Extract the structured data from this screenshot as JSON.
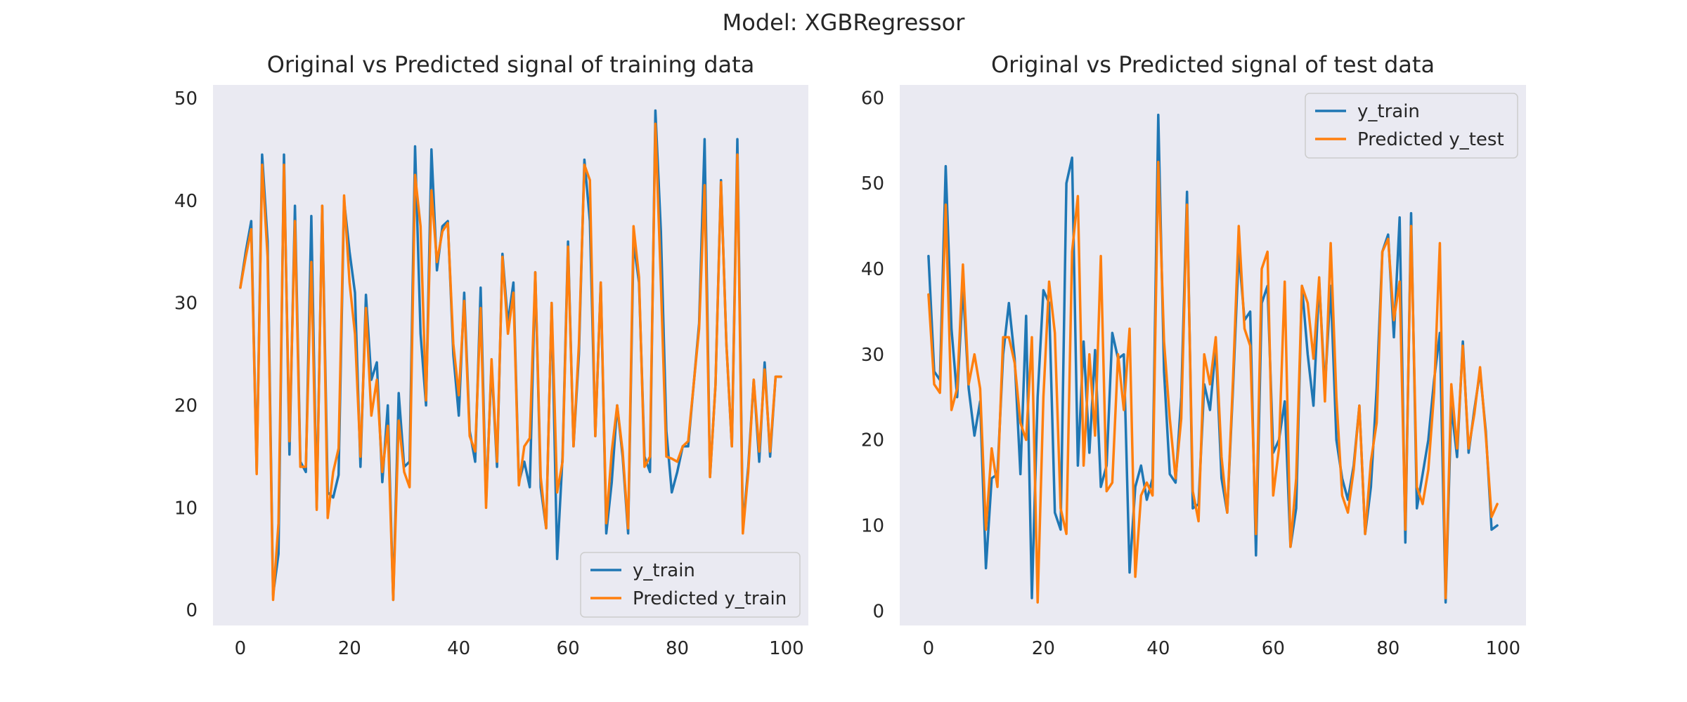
{
  "figure": {
    "suptitle": "Model: XGBRegressor",
    "background": "#ffffff",
    "axes_facecolor": "#eaeaf2"
  },
  "chart_data": [
    {
      "type": "line",
      "title": "Original vs Predicted signal of training data",
      "xlabel": "",
      "ylabel": "",
      "xlim": [
        -5,
        104
      ],
      "ylim": [
        -1.5,
        51.3
      ],
      "xticks": [
        0,
        20,
        40,
        60,
        80,
        100
      ],
      "yticks": [
        0,
        10,
        20,
        30,
        40,
        50
      ],
      "grid": false,
      "legend_position": "lower-right",
      "x": [
        0,
        1,
        2,
        3,
        4,
        5,
        6,
        7,
        8,
        9,
        10,
        11,
        12,
        13,
        14,
        15,
        16,
        17,
        18,
        19,
        20,
        21,
        22,
        23,
        24,
        25,
        26,
        27,
        28,
        29,
        30,
        31,
        32,
        33,
        34,
        35,
        36,
        37,
        38,
        39,
        40,
        41,
        42,
        43,
        44,
        45,
        46,
        47,
        48,
        49,
        50,
        51,
        52,
        53,
        54,
        55,
        56,
        57,
        58,
        59,
        60,
        61,
        62,
        63,
        64,
        65,
        66,
        67,
        68,
        69,
        70,
        71,
        72,
        73,
        74,
        75,
        76,
        77,
        78,
        79,
        80,
        81,
        82,
        83,
        84,
        85,
        86,
        87,
        88,
        89,
        90,
        91,
        92,
        93,
        94,
        95,
        96,
        97,
        98,
        99
      ],
      "series": [
        {
          "name": "y_train",
          "color": "#1f77b4",
          "values": [
            31.5,
            35,
            38,
            13.5,
            44.5,
            36,
            1.5,
            5.5,
            44.5,
            15.2,
            39.5,
            14.5,
            13.5,
            38.5,
            10,
            39.5,
            11.5,
            11,
            13.2,
            40,
            35,
            31,
            14,
            30.8,
            22.5,
            24.2,
            12.5,
            20,
            1,
            21.2,
            14,
            14.5,
            45.3,
            27,
            20,
            45,
            33.2,
            37.5,
            38,
            25,
            19,
            31,
            17.5,
            14.5,
            31.5,
            10.5,
            24,
            14,
            34.8,
            28,
            32,
            12.5,
            14.5,
            12,
            33,
            12,
            8,
            30,
            5,
            15,
            36,
            16,
            25,
            44,
            38,
            17,
            32,
            7.5,
            12.5,
            20,
            15,
            7.5,
            36,
            32,
            15,
            13.5,
            48.8,
            37,
            17.5,
            11.5,
            13.5,
            16,
            16,
            22,
            28,
            46,
            13,
            22,
            42,
            26,
            16,
            46,
            8,
            14,
            22.5,
            14.5,
            24.2,
            15,
            22.8,
            22.8
          ]
        },
        {
          "name": "Predicted y_train",
          "color": "#ff7f0e",
          "values": [
            31.5,
            34.5,
            37.2,
            13.3,
            43.5,
            34.5,
            1,
            8.5,
            43.5,
            16.5,
            38,
            14,
            14,
            34,
            9.8,
            39.5,
            9,
            13.5,
            15.8,
            40.5,
            32,
            27,
            15,
            29.5,
            19,
            22.5,
            13.5,
            18,
            1,
            18.5,
            13.5,
            12,
            42.5,
            37.5,
            20.5,
            41,
            34,
            37,
            37.8,
            26,
            21,
            30.2,
            17,
            15.5,
            29.5,
            10,
            24.5,
            14.5,
            34.5,
            27,
            31,
            12.2,
            16,
            16.8,
            33,
            13,
            8,
            30,
            11.5,
            14.5,
            35.5,
            16,
            26,
            43.5,
            42,
            17,
            32,
            8.5,
            15.5,
            20,
            15.5,
            8,
            37.5,
            32.5,
            14,
            15,
            47.5,
            32,
            15,
            14.8,
            14.5,
            16,
            16.5,
            22,
            27.5,
            41.5,
            13,
            22,
            41.8,
            26,
            16,
            44.5,
            7.5,
            13.5,
            22.5,
            15.5,
            23.5,
            15.5,
            22.8,
            22.8
          ]
        }
      ]
    },
    {
      "type": "line",
      "title": "Original vs Predicted signal of test data",
      "xlabel": "",
      "ylabel": "",
      "xlim": [
        -5,
        104
      ],
      "ylim": [
        -1.7,
        61.5
      ],
      "xticks": [
        0,
        20,
        40,
        60,
        80,
        100
      ],
      "yticks": [
        0,
        10,
        20,
        30,
        40,
        50,
        60
      ],
      "grid": false,
      "legend_position": "upper-right",
      "x": [
        0,
        1,
        2,
        3,
        4,
        5,
        6,
        7,
        8,
        9,
        10,
        11,
        12,
        13,
        14,
        15,
        16,
        17,
        18,
        19,
        20,
        21,
        22,
        23,
        24,
        25,
        26,
        27,
        28,
        29,
        30,
        31,
        32,
        33,
        34,
        35,
        36,
        37,
        38,
        39,
        40,
        41,
        42,
        43,
        44,
        45,
        46,
        47,
        48,
        49,
        50,
        51,
        52,
        53,
        54,
        55,
        56,
        57,
        58,
        59,
        60,
        61,
        62,
        63,
        64,
        65,
        66,
        67,
        68,
        69,
        70,
        71,
        72,
        73,
        74,
        75,
        76,
        77,
        78,
        79,
        80,
        81,
        82,
        83,
        84,
        85,
        86,
        87,
        88,
        89,
        90,
        91,
        92,
        93,
        94,
        95,
        96,
        97,
        98,
        99
      ],
      "series": [
        {
          "name": "y_train",
          "color": "#1f77b4",
          "values": [
            41.5,
            28,
            27,
            52,
            33,
            25,
            38,
            26,
            20.5,
            24.5,
            5,
            15.5,
            16,
            30,
            36,
            29.5,
            16,
            34.5,
            1.5,
            25,
            37.5,
            36,
            11.5,
            9.5,
            50,
            53,
            17,
            31.5,
            18.5,
            30.5,
            14.5,
            17,
            32.5,
            29.5,
            30,
            4.5,
            14.5,
            17,
            13,
            15.5,
            58,
            28,
            16,
            15,
            25,
            49,
            12,
            12.5,
            26.5,
            23.5,
            31,
            15.5,
            11.5,
            26,
            42,
            34,
            35,
            6.5,
            36,
            38,
            18.5,
            20,
            24.5,
            7.5,
            12,
            38,
            30,
            24,
            38.5,
            26,
            38,
            20,
            15.5,
            13,
            17,
            24,
            9,
            14.5,
            26,
            42,
            44,
            32,
            46,
            8,
            46.5,
            12,
            16,
            20,
            27,
            32.5,
            1,
            24,
            18,
            31.5,
            18.5,
            23.5,
            28,
            21,
            9.5,
            10
          ]
        },
        {
          "name": "Predicted y_test",
          "color": "#ff7f0e",
          "values": [
            37,
            26.5,
            25.5,
            47.5,
            23.5,
            26,
            40.5,
            26.5,
            30,
            26,
            9.5,
            19,
            14.5,
            32,
            32,
            29,
            22,
            20,
            32,
            1,
            25,
            38.5,
            32.5,
            12,
            9,
            42,
            48.5,
            17,
            30,
            20.5,
            41.5,
            14,
            15,
            30,
            23.5,
            33,
            4,
            13.5,
            15,
            13.5,
            52.5,
            31.5,
            22.5,
            15.5,
            22.5,
            47.5,
            14,
            10.5,
            30,
            26.5,
            32,
            18,
            11.5,
            27,
            45,
            33,
            31,
            9,
            40,
            42,
            13.5,
            19,
            38.5,
            7.5,
            15.5,
            38,
            36,
            29.5,
            39,
            24.5,
            43,
            25,
            13.5,
            11.5,
            16.5,
            24,
            9,
            17.5,
            22,
            42,
            43.5,
            34,
            38.5,
            9.5,
            45,
            14.5,
            12.5,
            16.5,
            25.5,
            43,
            1.5,
            26.5,
            19,
            31,
            19,
            23,
            28.5,
            20.5,
            11,
            12.5
          ]
        }
      ]
    }
  ]
}
